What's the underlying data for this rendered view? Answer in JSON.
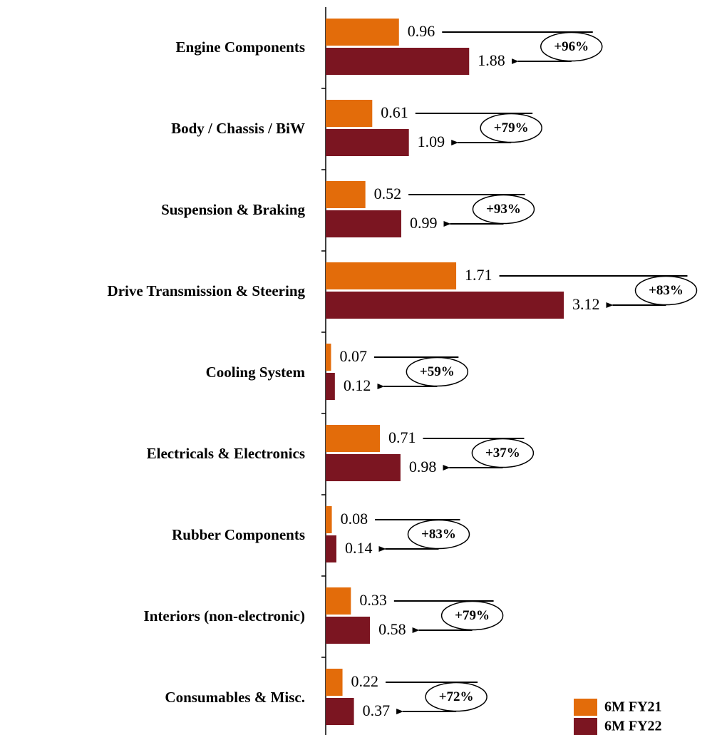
{
  "chart_data": {
    "type": "bar",
    "orientation": "horizontal",
    "categories": [
      "Engine Components",
      "Body / Chassis / BiW",
      "Suspension & Braking",
      "Drive Transmission & Steering",
      "Cooling System",
      "Electricals & Electronics",
      "Rubber Components",
      "Interiors (non-electronic)",
      "Consumables & Misc."
    ],
    "series": [
      {
        "name": "6M FY21",
        "color": "#E36C0A",
        "values": [
          0.96,
          0.61,
          0.52,
          1.71,
          0.07,
          0.71,
          0.08,
          0.33,
          0.22
        ]
      },
      {
        "name": "6M FY22",
        "color": "#7B1521",
        "values": [
          1.88,
          1.09,
          0.99,
          3.12,
          0.12,
          0.98,
          0.14,
          0.58,
          0.37
        ]
      }
    ],
    "growth_labels": [
      "+96%",
      "+79%",
      "+93%",
      "+83%",
      "+59%",
      "+37%",
      "+83%",
      "+79%",
      "+72%"
    ]
  }
}
